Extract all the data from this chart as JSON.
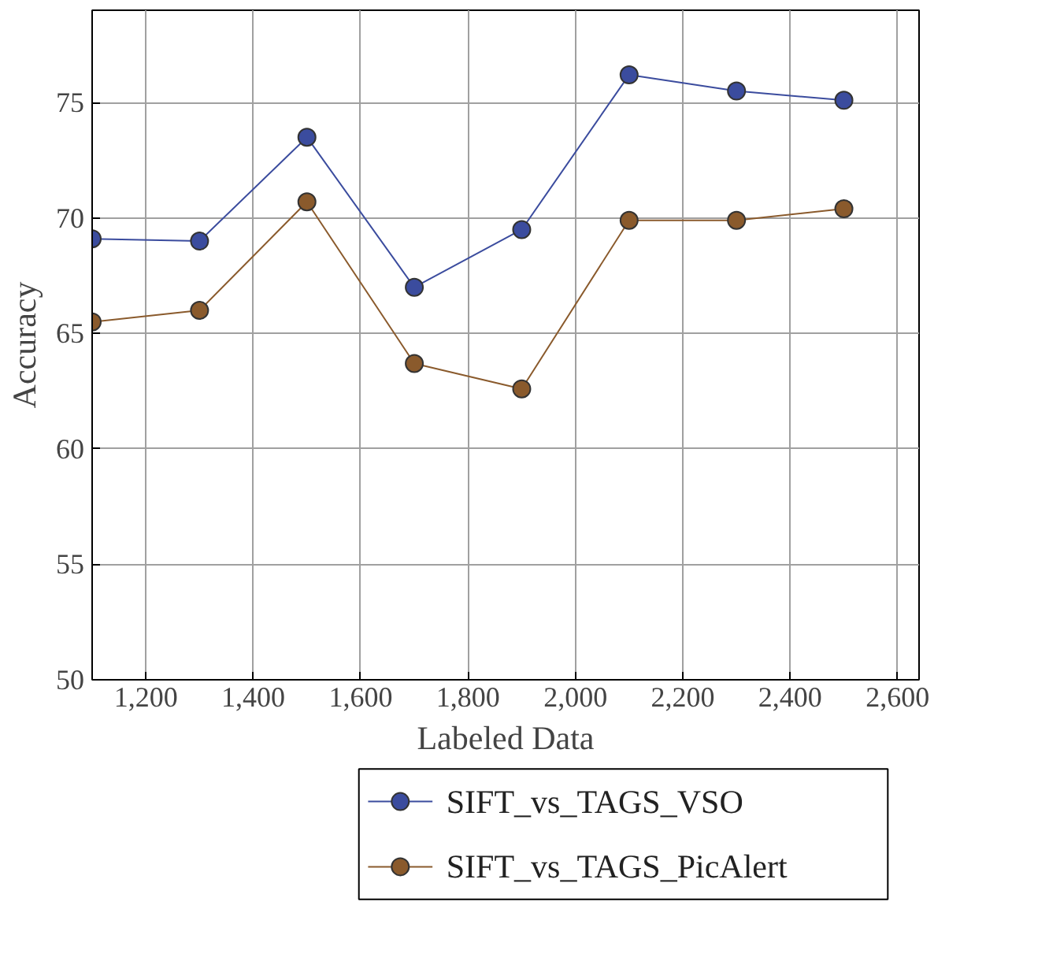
{
  "chart_data": {
    "type": "line",
    "xlabel": "Labeled Data",
    "ylabel": "Accuracy",
    "x": [
      1100,
      1300,
      1500,
      1700,
      1900,
      2100,
      2300,
      2500
    ],
    "series": [
      {
        "name": "SIFT_vs_TAGS_VSO",
        "color": "#3b4c9e",
        "values": [
          69.1,
          69.0,
          73.5,
          67.0,
          69.5,
          76.2,
          75.5,
          75.1
        ]
      },
      {
        "name": "SIFT_vs_TAGS_PicAlert",
        "color": "#8a5a2c",
        "values": [
          65.5,
          66.0,
          70.7,
          63.7,
          62.6,
          69.9,
          69.9,
          70.4
        ]
      }
    ],
    "xlim": [
      1100,
      2640
    ],
    "ylim": [
      50,
      79
    ],
    "xticks": [
      {
        "value": 1200,
        "label": "1,200"
      },
      {
        "value": 1400,
        "label": "1,400"
      },
      {
        "value": 1600,
        "label": "1,600"
      },
      {
        "value": 1800,
        "label": "1,800"
      },
      {
        "value": 2000,
        "label": "2,000"
      },
      {
        "value": 2200,
        "label": "2,200"
      },
      {
        "value": 2400,
        "label": "2,400"
      },
      {
        "value": 2600,
        "label": "2,600"
      }
    ],
    "yticks": [
      50,
      55,
      60,
      65,
      70,
      75
    ],
    "grid": true,
    "legend": "bottom",
    "marker": "circle",
    "line_style": "solid"
  }
}
